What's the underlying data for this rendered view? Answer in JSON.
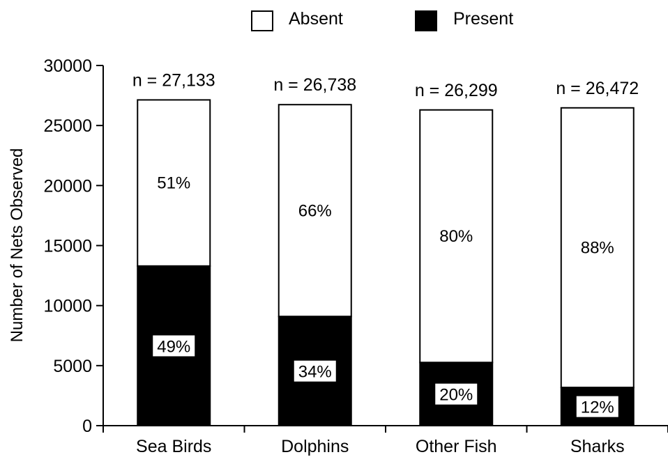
{
  "chart_data": {
    "type": "bar",
    "stacked": true,
    "categories": [
      "Sea Birds",
      "Dolphins",
      "Other Fish",
      "Sharks"
    ],
    "totals_labels": [
      "n = 27,133",
      "n = 26,738",
      "n = 26,299",
      "n = 26,472"
    ],
    "totals": [
      27133,
      26738,
      26299,
      26472
    ],
    "series": [
      {
        "name": "Present",
        "values": [
          13295,
          9091,
          5260,
          3177
        ],
        "percent_labels": [
          "49%",
          "34%",
          "20%",
          "12%"
        ],
        "color": "#000000"
      },
      {
        "name": "Absent",
        "values": [
          13838,
          17647,
          21039,
          23295
        ],
        "percent_labels": [
          "51%",
          "66%",
          "80%",
          "88%"
        ],
        "color": "#ffffff"
      }
    ],
    "ylabel": "Number of Nets Observed",
    "xlabel": "",
    "ylim": [
      0,
      30000
    ],
    "yticks": [
      "0",
      "5000",
      "10000",
      "15000",
      "20000",
      "25000",
      "30000"
    ],
    "legend": {
      "placement": "top",
      "entries": [
        {
          "label": "Absent",
          "color": "#ffffff"
        },
        {
          "label": "Present",
          "color": "#000000"
        }
      ]
    },
    "grid": false
  }
}
